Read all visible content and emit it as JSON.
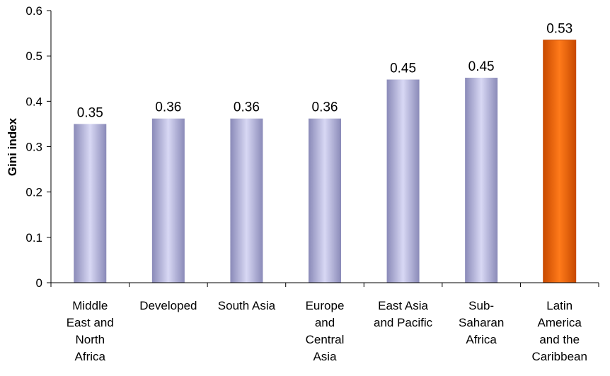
{
  "chart_data": {
    "type": "bar",
    "ylabel": "Gini index",
    "ylim": [
      0,
      0.6
    ],
    "yticks": [
      0,
      0.1,
      0.2,
      0.3,
      0.4,
      0.5,
      0.6
    ],
    "ytick_labels": [
      "0",
      "0.1",
      "0.2",
      "0.3",
      "0.4",
      "0.5",
      "0.6"
    ],
    "categories": [
      "Middle East and North Africa",
      "Developed",
      "South Asia",
      "Europe and Central Asia",
      "East Asia and Pacific",
      "Sub-Saharan Africa",
      "Latin America and the Caribbean"
    ],
    "category_label_lines": [
      [
        "Middle",
        "East and",
        "North",
        "Africa"
      ],
      [
        "Developed"
      ],
      [
        "South Asia"
      ],
      [
        "Europe",
        "and",
        "Central",
        "Asia"
      ],
      [
        "East Asia",
        "and Pacific"
      ],
      [
        "Sub-",
        "Saharan",
        "Africa"
      ],
      [
        "Latin",
        "America",
        "and the",
        "Caribbean"
      ]
    ],
    "values": [
      0.35,
      0.362,
      0.362,
      0.362,
      0.448,
      0.452,
      0.535
    ],
    "data_labels": [
      "0.35",
      "0.36",
      "0.36",
      "0.36",
      "0.45",
      "0.45",
      "0.53"
    ],
    "highlight_index": 6,
    "colors": {
      "bar_edge": "#8a8ab8",
      "bar_center": "#d8d8f4",
      "highlight_edge": "#c84a00",
      "highlight_center": "#ff7a1a",
      "axis": "#000000"
    }
  }
}
